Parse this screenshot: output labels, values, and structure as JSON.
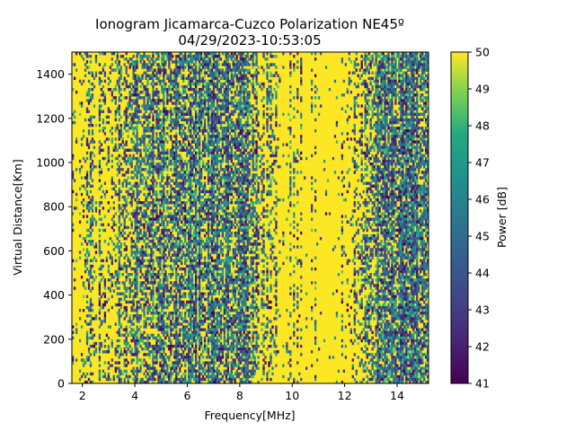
{
  "chart_data": {
    "type": "heatmap",
    "title": "Ionogram Jicamarca-Cuzco Polarization NE45º",
    "subtitle": "04/29/2023-10:53:05",
    "xlabel": "Frequency[MHz]",
    "ylabel": "Virtual Distance[Km]",
    "colorbar_label": "Power [dB]",
    "colormap": "viridis",
    "xlim": [
      1.6,
      15.2
    ],
    "ylim": [
      0,
      1500
    ],
    "clim": [
      41,
      50
    ],
    "xticks": [
      2,
      4,
      6,
      8,
      10,
      12,
      14
    ],
    "xtick_labels": [
      "2",
      "4",
      "6",
      "8",
      "10",
      "12",
      "14"
    ],
    "yticks": [
      0,
      200,
      400,
      600,
      800,
      1000,
      1200,
      1400
    ],
    "ytick_labels": [
      "0",
      "200",
      "400",
      "600",
      "800",
      "1000",
      "1200",
      "1400"
    ],
    "cticks": [
      41,
      42,
      43,
      44,
      45,
      46,
      47,
      48,
      49,
      50
    ],
    "ctick_labels": [
      "41",
      "42",
      "43",
      "44",
      "45",
      "46",
      "47",
      "48",
      "49",
      "50"
    ],
    "grid": false,
    "noise_profile": [
      {
        "f": 1.6,
        "density": 0.12
      },
      {
        "f": 2.5,
        "density": 0.18
      },
      {
        "f": 3.2,
        "density": 0.35
      },
      {
        "f": 3.8,
        "density": 0.55
      },
      {
        "f": 5.0,
        "density": 0.65
      },
      {
        "f": 7.0,
        "density": 0.65
      },
      {
        "f": 8.4,
        "density": 0.55
      },
      {
        "f": 8.8,
        "density": 0.3
      },
      {
        "f": 9.5,
        "density": 0.12
      },
      {
        "f": 10.2,
        "density": 0.03
      },
      {
        "f": 11.8,
        "density": 0.03
      },
      {
        "f": 12.3,
        "density": 0.15
      },
      {
        "f": 12.8,
        "density": 0.3
      },
      {
        "f": 13.3,
        "density": 0.7
      },
      {
        "f": 14.5,
        "density": 0.75
      },
      {
        "f": 15.2,
        "density": 0.7
      }
    ]
  }
}
